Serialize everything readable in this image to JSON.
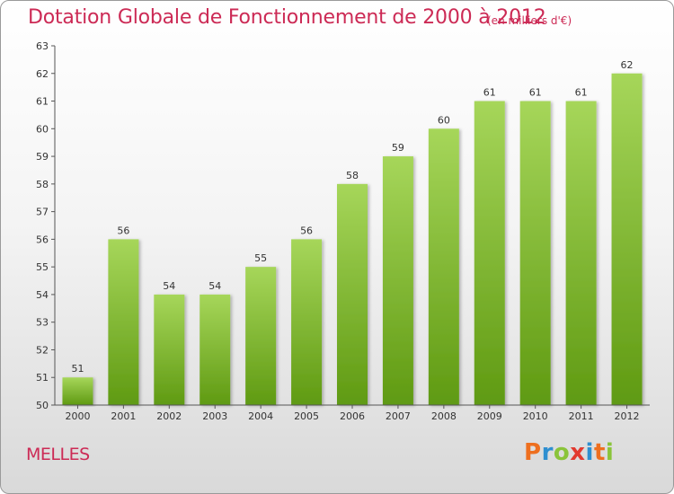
{
  "header": {
    "title": "Dotation Globale de Fonctionnement de 2000 à 2012",
    "subtitle": "(en milliers d'€)"
  },
  "footer": {
    "commune": "MELLES",
    "logo": [
      "P",
      "r",
      "o",
      "x",
      "i",
      "t",
      "i"
    ],
    "logo_colors": [
      "#ee6f1f",
      "#2f8fd0",
      "#8ac43a",
      "#e23a2f",
      "#2f8fd0",
      "#ee6f1f",
      "#8ac43a"
    ]
  },
  "colors": {
    "title": "#cc2a55",
    "bar_top": "#a6d65a",
    "bar_bottom": "#5f9a12",
    "axis": "#555555"
  },
  "chart_data": {
    "type": "bar",
    "title": "Dotation Globale de Fonctionnement de 2000 à 2012",
    "subtitle": "(en milliers d'€)",
    "categories": [
      "2000",
      "2001",
      "2002",
      "2003",
      "2004",
      "2005",
      "2006",
      "2007",
      "2008",
      "2009",
      "2010",
      "2011",
      "2012"
    ],
    "values": [
      51,
      56,
      54,
      54,
      55,
      56,
      58,
      59,
      60,
      61,
      61,
      61,
      62
    ],
    "ylim": [
      50,
      63
    ],
    "yticks": [
      50,
      51,
      52,
      53,
      54,
      55,
      56,
      57,
      58,
      59,
      60,
      61,
      62,
      63
    ],
    "xlabel": "",
    "ylabel": "",
    "grid": false,
    "data_labels": true
  }
}
